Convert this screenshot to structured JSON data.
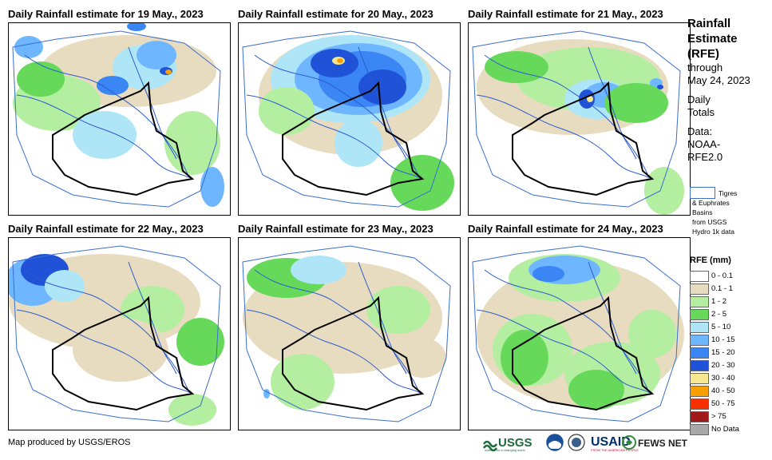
{
  "panels": [
    {
      "title": "Daily Rainfall estimate for 19 May., 2023"
    },
    {
      "title": "Daily Rainfall estimate for 20 May., 2023"
    },
    {
      "title": "Daily Rainfall estimate for 21 May., 2023"
    },
    {
      "title": "Daily Rainfall estimate for 22 May., 2023"
    },
    {
      "title": "Daily Rainfall estimate for 23 May., 2023"
    },
    {
      "title": "Daily Rainfall estimate for 24 May., 2023"
    }
  ],
  "sidebar": {
    "title_line1": "Rainfall",
    "title_line2": "Estimate",
    "title_line3": "(RFE)",
    "through": "through",
    "date": "May 24, 2023",
    "daily": "Daily",
    "totals": "Totals",
    "data_label": "Data:",
    "data_src1": "NOAA-",
    "data_src2": "RFE2.0",
    "basin_line1": "Tigres",
    "basin_line2": "& Euphrates",
    "basin_line3": "Basins",
    "basin_line4": "from USGS",
    "basin_line5": "Hydro 1k data"
  },
  "legend": {
    "title": "RFE (mm)",
    "items": [
      {
        "label": "0 - 0.1",
        "color": "#ffffff"
      },
      {
        "label": "0.1 - 1",
        "color": "#e8dcc0"
      },
      {
        "label": "1 - 2",
        "color": "#b4eea0"
      },
      {
        "label": "2 - 5",
        "color": "#66d95a"
      },
      {
        "label": "5 - 10",
        "color": "#aee6f8"
      },
      {
        "label": "10 - 15",
        "color": "#6eb6ff"
      },
      {
        "label": "15 - 20",
        "color": "#3a86f4"
      },
      {
        "label": "20 - 30",
        "color": "#1f52d6"
      },
      {
        "label": "30 - 40",
        "color": "#f8e890"
      },
      {
        "label": "40 - 50",
        "color": "#f8a000"
      },
      {
        "label": "50 - 75",
        "color": "#f83000"
      },
      {
        "label": "> 75",
        "color": "#a01818"
      },
      {
        "label": "No Data",
        "color": "#a8a8a8"
      }
    ]
  },
  "footer": {
    "credit": "Map produced by USGS/EROS",
    "logo_usgs": "USGS",
    "logo_usgs_tag": "science for a changing world",
    "logo_usaid": "USAID",
    "logo_usaid_tag": "FROM THE AMERICAN PEOPLE",
    "logo_fews": "FEWS NET"
  }
}
